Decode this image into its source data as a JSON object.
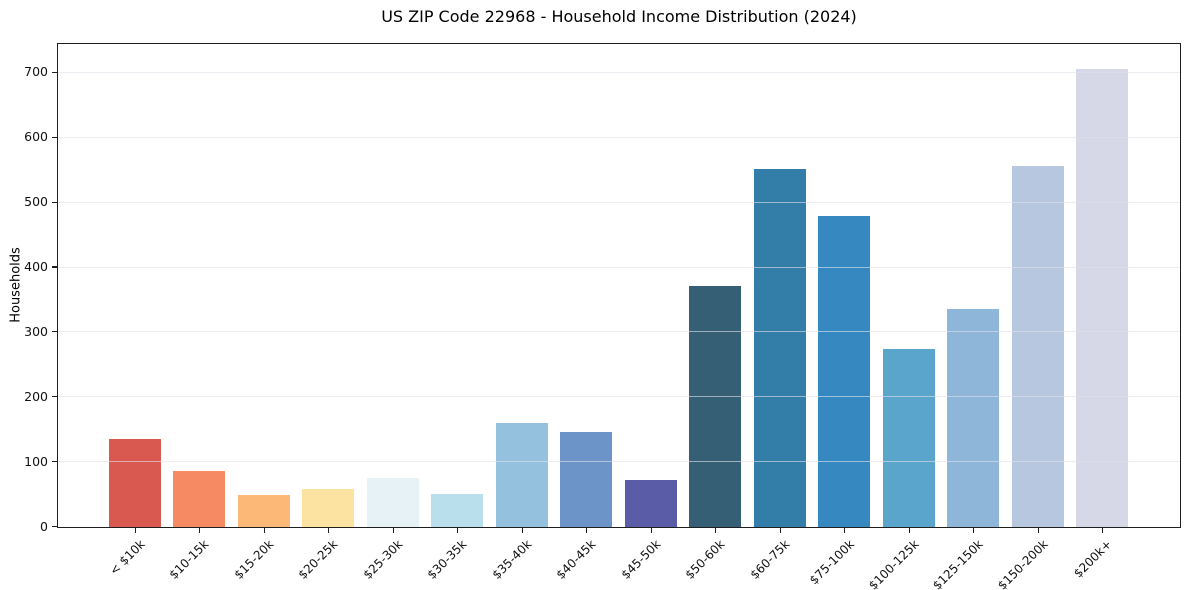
{
  "chart_data": {
    "type": "bar",
    "title": "US ZIP Code 22968 - Household Income Distribution (2024)",
    "xlabel": "",
    "ylabel": "Households",
    "categories": [
      "< $10k",
      "$10-15k",
      "$15-20k",
      "$20-25k",
      "$25-30k",
      "$30-35k",
      "$35-40k",
      "$40-45k",
      "$45-50k",
      "$50-60k",
      "$60-75k",
      "$75-100k",
      "$100-125k",
      "$125-150k",
      "$150-200k",
      "$200k+"
    ],
    "values": [
      135,
      87,
      50,
      59,
      75,
      51,
      160,
      147,
      73,
      372,
      552,
      480,
      274,
      336,
      557,
      706
    ],
    "bar_colors": [
      "#d95850",
      "#f58a63",
      "#fbb877",
      "#fde3a1",
      "#e7f2f6",
      "#b9dfec",
      "#93c1de",
      "#6d94c9",
      "#5a5ca8",
      "#355f75",
      "#337da9",
      "#3689c0",
      "#5aa5cb",
      "#8db6d9",
      "#b7c7e0",
      "#d7d8e7"
    ],
    "ylim": [
      0,
      743
    ],
    "yticks": [
      0,
      100,
      200,
      300,
      400,
      500,
      600,
      700
    ],
    "grid": "horizontal gridlines only, drawn above bars",
    "legend_position": "none",
    "x_tick_rotation_deg": 45,
    "colors": {
      "background": "#ffffff",
      "text": "#111111",
      "spine": "#1f1f1f",
      "gridline": "#e9e9f0"
    }
  }
}
